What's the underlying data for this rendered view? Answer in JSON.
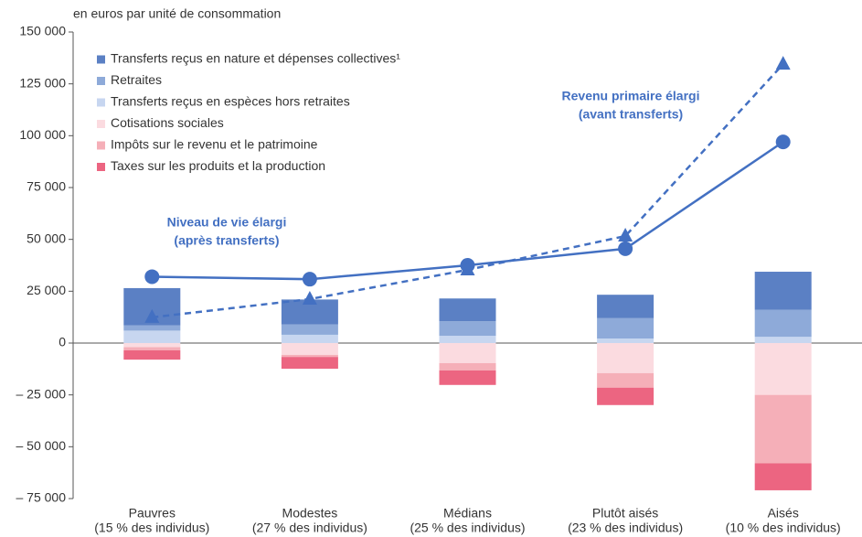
{
  "chart_data": {
    "type": "stacked_bar_line",
    "unit_label": "en euros par unité de consommation",
    "categories": [
      [
        "Pauvres",
        "(15 % des individus)"
      ],
      [
        "Modestes",
        "(27 % des individus)"
      ],
      [
        "Médians",
        "(25 % des individus)"
      ],
      [
        "Plutôt aisés",
        "(23 % des individus)"
      ],
      [
        "Aisés",
        "(10 % des individus)"
      ]
    ],
    "ylim": [
      -75000,
      150000
    ],
    "yticks": [
      {
        "value": -75000,
        "label": "– 75 000"
      },
      {
        "value": -50000,
        "label": "– 50 000"
      },
      {
        "value": -25000,
        "label": "– 25 000"
      },
      0,
      {
        "value": 25000,
        "label": "25 000"
      },
      {
        "value": 50000,
        "label": "50 000"
      },
      {
        "value": 75000,
        "label": "75 000"
      },
      {
        "value": 100000,
        "label": "100 000"
      },
      {
        "value": 125000,
        "label": "125 000"
      },
      {
        "value": 150000,
        "label": "150 000"
      }
    ],
    "legend": "top-left",
    "series": [
      {
        "name": "Transferts reçus en nature et dépenses collectives¹",
        "color": "#5b80c4",
        "values": [
          18000,
          12000,
          11000,
          11300,
          18400
        ]
      },
      {
        "name": "Retraites",
        "color": "#8eaad9",
        "values": [
          2500,
          5000,
          7000,
          9800,
          13000
        ]
      },
      {
        "name": "Transferts reçus en espèces hors retraites",
        "color": "#c7d6f0",
        "values": [
          6000,
          4000,
          3500,
          2200,
          3000
        ]
      },
      {
        "name": "Cotisations sociales",
        "color": "#fbdbe0",
        "values": [
          -2000,
          -5700,
          -9700,
          -14500,
          -25000
        ]
      },
      {
        "name": "Impôts sur le revenu et le patrimoine",
        "color": "#f5afb8",
        "values": [
          -1500,
          -1000,
          -3500,
          -7000,
          -33000
        ]
      },
      {
        "name": "Taxes sur les produits et la production",
        "color": "#ec6581",
        "values": [
          -4500,
          -5700,
          -7000,
          -8400,
          -13000
        ]
      }
    ],
    "lines": [
      {
        "label": [
          "Niveau de vie élargi",
          "(après transferts)"
        ],
        "color": "#4370c2",
        "marker": "circle",
        "dashed": false,
        "values": [
          32000,
          30800,
          37500,
          45500,
          97000
        ]
      },
      {
        "label": [
          "Revenu primaire élargi",
          "(avant transferts)"
        ],
        "color": "#4370c2",
        "marker": "triangle",
        "dashed": true,
        "values": [
          12400,
          21200,
          35300,
          51600,
          134500
        ]
      }
    ]
  }
}
